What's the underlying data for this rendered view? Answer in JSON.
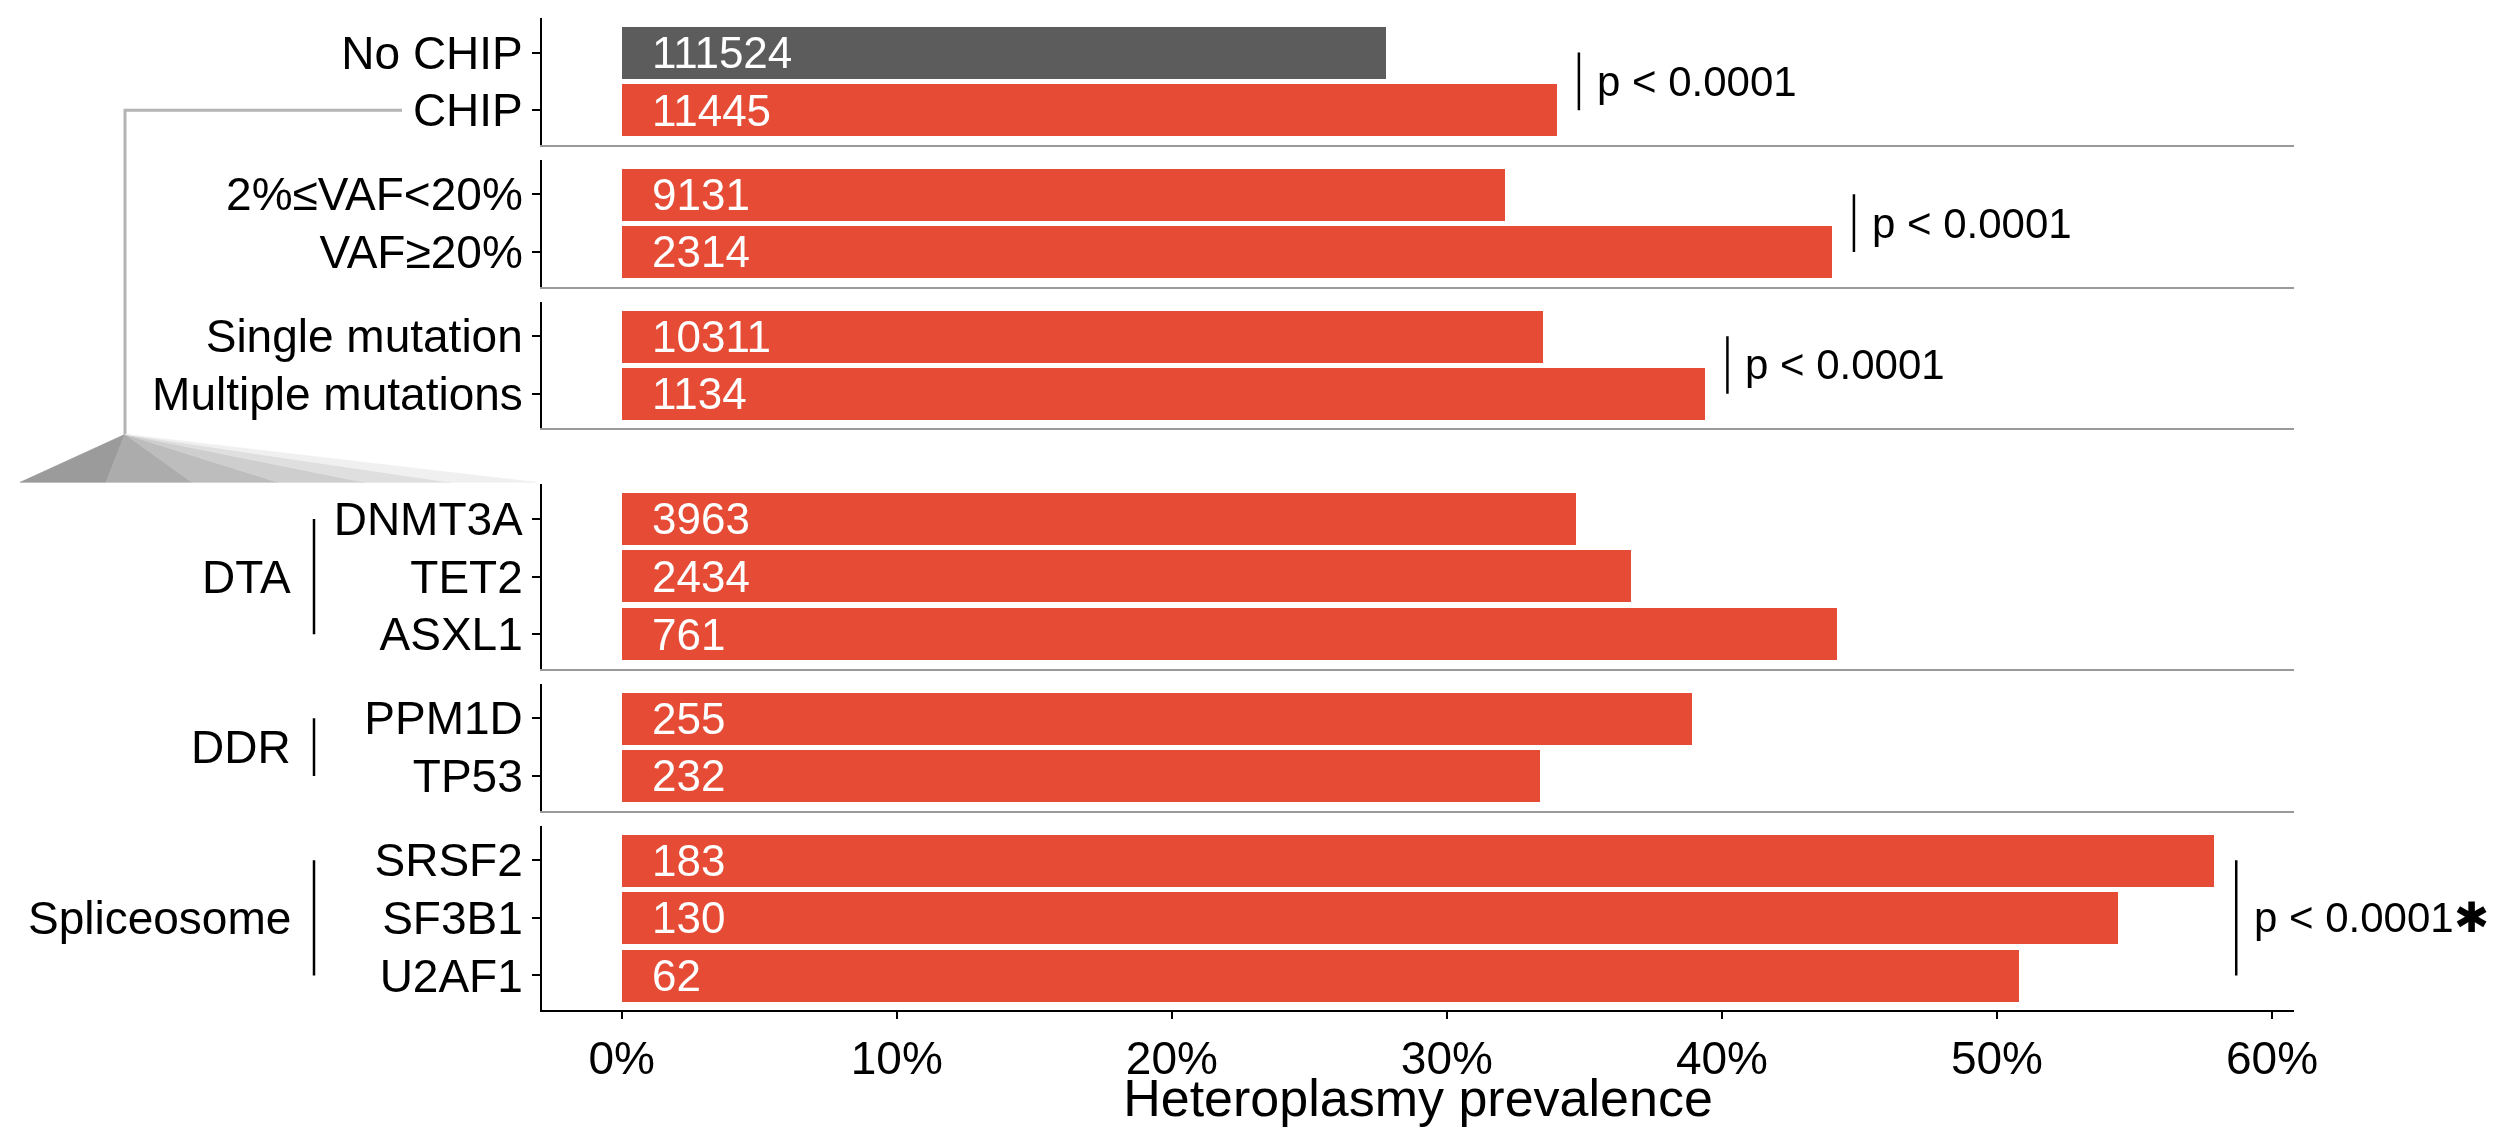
{
  "chart_data": [
    {
      "type": "bar",
      "orientation": "horizontal",
      "categories": [
        "No CHIP",
        "CHIP"
      ],
      "values": [
        27.8,
        34.0
      ],
      "colors": [
        "#5c5c5c",
        "#e64b35"
      ],
      "xlim": [
        -2.9,
        60.8
      ],
      "tick_labels": "y",
      "annotations": [
        {
          "text": "111524",
          "y": "No CHIP"
        },
        {
          "text": "11445",
          "y": "CHIP"
        },
        "p < 0.0001"
      ]
    },
    {
      "type": "bar",
      "orientation": "horizontal",
      "categories": [
        "2%≤VAF<20%",
        "VAF≥20%"
      ],
      "values": [
        32.1,
        44.0
      ],
      "color": "#e64b35",
      "xlim": [
        -2.9,
        60.8
      ],
      "tick_labels": "y",
      "annotations": [
        {
          "text": "9131",
          "y": "2%≤VAF<20%"
        },
        {
          "text": "2314",
          "y": "VAF≥20%"
        },
        "p < 0.0001"
      ]
    },
    {
      "type": "bar",
      "orientation": "horizontal",
      "categories": [
        "Single mutation",
        "Multiple mutations"
      ],
      "values": [
        33.5,
        39.4
      ],
      "color": "#e64b35",
      "xlim": [
        -2.9,
        60.8
      ],
      "tick_labels": "y",
      "annotations": [
        {
          "text": "10311",
          "y": "Single mutation"
        },
        {
          "text": "1134",
          "y": "Multiple mutations"
        },
        "p < 0.0001"
      ]
    },
    {
      "type": "bar",
      "orientation": "horizontal",
      "ylabel": "DTA",
      "categories": [
        "DNMT3A",
        "TET2",
        "ASXL1"
      ],
      "values": [
        34.7,
        36.7,
        44.2
      ],
      "color": "#e64b35",
      "xlim": [
        -2.9,
        60.8
      ],
      "tick_labels": "y",
      "annotations": [
        {
          "text": "3963",
          "y": "DNMT3A"
        },
        {
          "text": "2434",
          "y": "TET2"
        },
        {
          "text": "761",
          "y": "ASXL1"
        }
      ]
    },
    {
      "type": "bar",
      "orientation": "horizontal",
      "ylabel": "DDR",
      "categories": [
        "PPM1D",
        "TP53"
      ],
      "values": [
        38.9,
        33.4
      ],
      "color": "#e64b35",
      "xlim": [
        -2.9,
        60.8
      ],
      "tick_labels": "y",
      "annotations": [
        {
          "text": "255",
          "y": "PPM1D"
        },
        {
          "text": "232",
          "y": "TP53"
        }
      ]
    },
    {
      "type": "bar",
      "orientation": "horizontal",
      "ylabel": "Spliceosome",
      "xlabel": "Heteroplasmy prevalence",
      "categories": [
        "SRSF2",
        "SF3B1",
        "U2AF1"
      ],
      "values": [
        57.9,
        54.4,
        50.8
      ],
      "color": "#e64b35",
      "xlim": [
        -2.9,
        60.8
      ],
      "xticks": [
        {
          "value": 0,
          "label": "0%"
        },
        {
          "value": 10,
          "label": "10%"
        },
        {
          "value": 20,
          "label": "20%"
        },
        {
          "value": 30,
          "label": "30%"
        },
        {
          "value": 40,
          "label": "40%"
        },
        {
          "value": 50,
          "label": "50%"
        },
        {
          "value": 60,
          "label": "60%"
        }
      ],
      "annotations": [
        {
          "text": "183",
          "y": "SRSF2"
        },
        {
          "text": "130",
          "y": "SF3B1"
        },
        {
          "text": "62",
          "y": "U2AF1"
        },
        "p < 0.0001✱"
      ]
    }
  ]
}
